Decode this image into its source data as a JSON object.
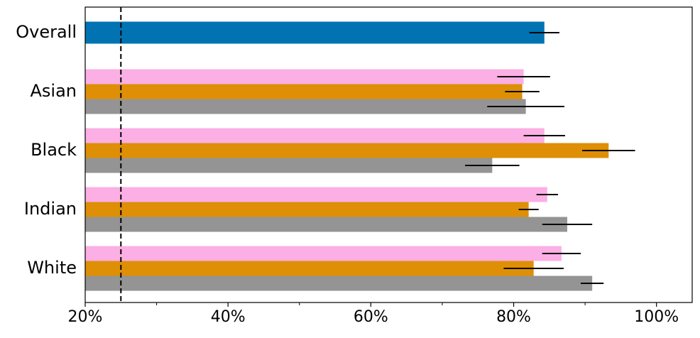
{
  "chart_data": {
    "type": "bar",
    "orientation": "horizontal",
    "categories": [
      "Overall",
      "Asian",
      "Black",
      "Indian",
      "White"
    ],
    "series": [
      {
        "color": "#0173b2",
        "values": [
          84.3,
          null,
          null,
          null,
          null
        ],
        "errors": [
          2.1,
          null,
          null,
          null,
          null
        ]
      },
      {
        "color": "#fbafe4",
        "values": [
          null,
          81.4,
          84.3,
          84.7,
          86.7
        ],
        "errors": [
          null,
          3.7,
          2.9,
          1.5,
          2.7
        ]
      },
      {
        "color": "#de8f05",
        "values": [
          null,
          81.2,
          93.3,
          82.1,
          82.8
        ],
        "errors": [
          null,
          2.4,
          3.7,
          1.4,
          4.2
        ]
      },
      {
        "color": "#949494",
        "values": [
          null,
          81.7,
          77.0,
          87.5,
          91.0
        ],
        "errors": [
          null,
          5.4,
          3.8,
          3.5,
          1.6
        ]
      }
    ],
    "xlim": [
      20,
      105
    ],
    "xticks": [
      {
        "value": 20,
        "label": "20%"
      },
      {
        "value": 40,
        "label": "40%"
      },
      {
        "value": 60,
        "label": "60%"
      },
      {
        "value": 80,
        "label": "80%"
      },
      {
        "value": 100,
        "label": "100%"
      }
    ],
    "minor_xticks": [
      30,
      50,
      70,
      90
    ],
    "reference_line": 25,
    "error_color": "#000000"
  }
}
